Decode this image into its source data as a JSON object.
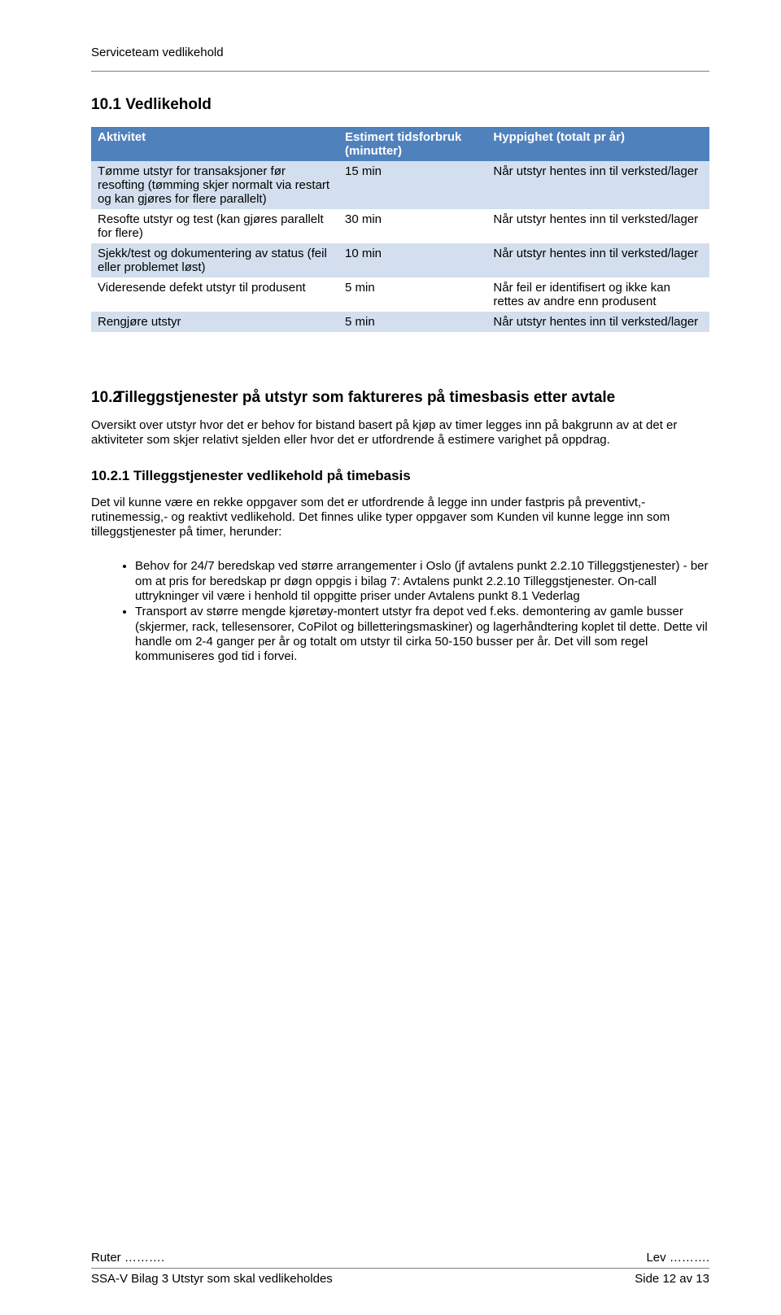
{
  "header": {
    "title": "Serviceteam vedlikehold"
  },
  "section1": {
    "number": "10.1",
    "title": "Vedlikehold"
  },
  "table": {
    "header_bg": "#4f81bd",
    "header_fg": "#ffffff",
    "odd_bg": "#d3dfee",
    "even_bg": "#ffffff",
    "columns": [
      "Aktivitet",
      "Estimert tidsforbruk (minutter)",
      "Hyppighet (totalt pr år)"
    ],
    "rows": [
      {
        "activity": "Tømme utstyr for transaksjoner før resofting (tømming skjer normalt via restart og kan gjøres for flere parallelt)",
        "time": "15 min",
        "freq": "Når utstyr hentes inn til verksted/lager"
      },
      {
        "activity": "Resofte utstyr og test (kan gjøres parallelt for flere)",
        "time": "30 min",
        "freq": "Når utstyr hentes inn til verksted/lager"
      },
      {
        "activity": "Sjekk/test og dokumentering av status (feil eller problemet løst)",
        "time": "10 min",
        "freq": "Når utstyr hentes inn til verksted/lager"
      },
      {
        "activity": "Videresende defekt utstyr til produsent",
        "time": "5 min",
        "freq": "Når feil er identifisert og ikke kan rettes av andre enn produsent"
      },
      {
        "activity": "Rengjøre utstyr",
        "time": "5 min",
        "freq": "Når utstyr hentes inn til verksted/lager"
      }
    ]
  },
  "section2": {
    "number": "10.2",
    "title": "Tilleggstjenester på utstyr som faktureres på timesbasis etter avtale",
    "para1": "Oversikt over utstyr hvor det er behov for bistand basert på kjøp av timer legges inn på bakgrunn av at det er aktiviteter som skjer relativt sjelden eller hvor det er utfordrende å estimere varighet på oppdrag."
  },
  "subsection": {
    "title": "10.2.1 Tilleggstjenester vedlikehold på timebasis",
    "para": "Det vil kunne være en rekke oppgaver som det er utfordrende å legge inn under fastpris på preventivt,- rutinemessig,- og reaktivt vedlikehold. Det finnes ulike typer oppgaver som Kunden vil kunne legge inn som tilleggstjenester på timer, herunder:",
    "bullets": [
      "Behov for 24/7 beredskap ved større arrangementer i Oslo (jf avtalens punkt 2.2.10 Tilleggstjenester) - ber om at pris for beredskap pr døgn oppgis i bilag 7: Avtalens punkt 2.2.10 Tilleggstjenester. On-call uttrykninger vil være i henhold til oppgitte priser under Avtalens punkt 8.1 Vederlag",
      "Transport av større mengde kjøretøy-montert utstyr fra depot ved f.eks. demontering av gamle busser (skjermer, rack, tellesensorer, CoPilot og billetteringsmaskiner) og lagerhåndtering koplet til dette. Dette vil handle om 2-4 ganger per år og totalt om utstyr til cirka 50-150 busser per år. Det vill som regel kommuniseres god tid i forvei."
    ]
  },
  "footer": {
    "left_top": "Ruter ……….",
    "right_top": "Lev ……….",
    "left_bottom": "SSA-V Bilag 3 Utstyr som skal vedlikeholdes",
    "right_bottom": "Side 12 av 13"
  }
}
